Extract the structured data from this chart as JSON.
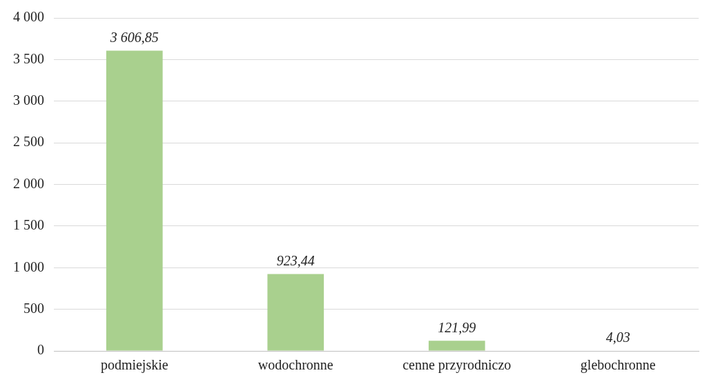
{
  "chart_data": {
    "type": "bar",
    "categories": [
      "podmiejskie",
      "wodochronne",
      "cenne przyrodniczo",
      "glebochronne"
    ],
    "values": [
      3606.85,
      923.44,
      121.99,
      4.03
    ],
    "color": "#a9d08e",
    "value_labels": [
      "3 606,85",
      "923,44",
      "121,99",
      "4,03"
    ],
    "ylim": [
      0,
      4000
    ],
    "yticks": [
      0,
      500,
      {
        "value": 1000,
        "label": "1 000"
      },
      {
        "value": 1500,
        "label": "1 500"
      },
      {
        "value": 2000,
        "label": "2 000"
      },
      {
        "value": 2500,
        "label": "2 500"
      },
      {
        "value": 3000,
        "label": "3 000"
      },
      {
        "value": 3500,
        "label": "3 500"
      },
      {
        "value": 4000,
        "label": "4 000"
      }
    ],
    "grid": "y"
  }
}
